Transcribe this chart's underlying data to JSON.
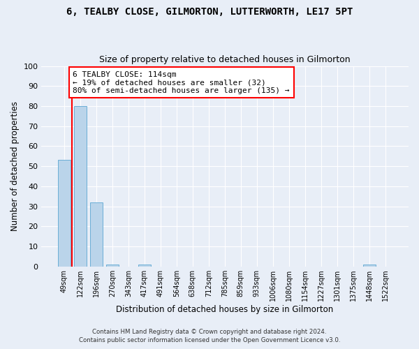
{
  "title1": "6, TEALBY CLOSE, GILMORTON, LUTTERWORTH, LE17 5PT",
  "title2": "Size of property relative to detached houses in Gilmorton",
  "xlabel": "Distribution of detached houses by size in Gilmorton",
  "ylabel": "Number of detached properties",
  "categories": [
    "49sqm",
    "122sqm",
    "196sqm",
    "270sqm",
    "343sqm",
    "417sqm",
    "491sqm",
    "564sqm",
    "638sqm",
    "712sqm",
    "785sqm",
    "859sqm",
    "933sqm",
    "1006sqm",
    "1080sqm",
    "1154sqm",
    "1227sqm",
    "1301sqm",
    "1375sqm",
    "1448sqm",
    "1522sqm"
  ],
  "values": [
    53,
    80,
    32,
    1,
    0,
    1,
    0,
    0,
    0,
    0,
    0,
    0,
    0,
    0,
    0,
    0,
    0,
    0,
    0,
    1,
    0
  ],
  "bar_color": "#bad4ea",
  "bar_edge_color": "#6aaed6",
  "annotation_line1": "6 TEALBY CLOSE: 114sqm",
  "annotation_line2": "← 19% of detached houses are smaller (32)",
  "annotation_line3": "80% of semi-detached houses are larger (135) →",
  "vline_x": 0.5,
  "annotation_box_color": "white",
  "annotation_box_edge_color": "red",
  "vline_color": "red",
  "footnote1": "Contains HM Land Registry data © Crown copyright and database right 2024.",
  "footnote2": "Contains public sector information licensed under the Open Government Licence v3.0.",
  "ylim": [
    0,
    100
  ],
  "background_color": "#e8eef7",
  "plot_bg_color": "#e8eef7",
  "grid_color": "#ffffff",
  "title1_fontsize": 10,
  "title2_fontsize": 9
}
